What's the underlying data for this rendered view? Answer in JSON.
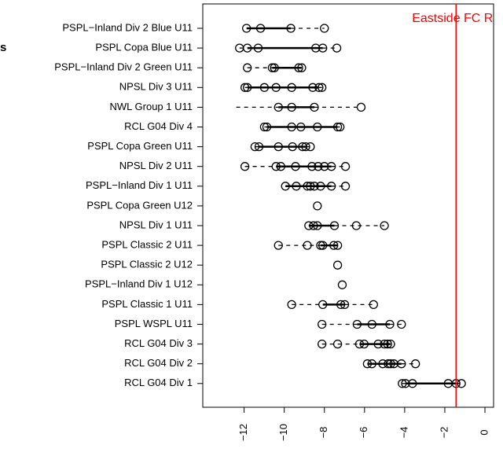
{
  "chart_data": {
    "type": "boxdot",
    "title": "s",
    "categories": [
      "PSPL−Inland Div 2 Blue U11",
      "PSPL Copa Blue U11",
      "PSPL−Inland Div 2 Green U11",
      "NPSL Div 3 U11",
      "NWL Group 1 U11",
      "RCL G04 Div 4",
      "PSPL Copa Green U11",
      "NPSL Div 2 U11",
      "PSPL−Inland Div 1 U11",
      "PSPL Copa Green U12",
      "NPSL Div 1 U11",
      "PSPL Classic 2 U11",
      "PSPL Classic 2 U12",
      "PSPL−Inland Div 1 U12",
      "PSPL Classic 1 U11",
      "PSPL WSPL U11",
      "RCL G04 Div 3",
      "RCL G04 Div 2",
      "RCL G04 Div 1"
    ],
    "points": [
      [
        -11.88,
        -11.18,
        -9.67,
        -8.0
      ],
      [
        -12.23,
        -11.84,
        -11.3,
        -8.43,
        -8.08,
        -7.38
      ],
      [
        -11.84,
        -10.6,
        -10.49,
        -9.28,
        -9.13
      ],
      [
        -11.96,
        -11.84,
        -10.99,
        -10.41,
        -9.63,
        -8.58,
        -8.27,
        -8.12
      ],
      [
        -10.29,
        -9.63,
        -8.5,
        -6.17
      ],
      [
        -10.99,
        -10.87,
        -9.63,
        -9.17,
        -8.35,
        -7.34,
        -7.22
      ],
      [
        -11.46,
        -11.26,
        -10.29,
        -9.59,
        -9.09,
        -8.93,
        -8.7
      ],
      [
        -11.96,
        -10.41,
        -10.17,
        -9.44,
        -8.62,
        -8.31,
        -8.0,
        -7.65,
        -6.95
      ],
      [
        -9.94,
        -9.4,
        -8.85,
        -8.7,
        -8.5,
        -8.19,
        -7.65,
        -6.95
      ],
      [
        -8.35
      ],
      [
        -8.78,
        -8.54,
        -8.35,
        -7.5,
        -6.41,
        -5.01
      ],
      [
        -10.29,
        -8.85,
        -8.19,
        -8.08,
        -7.53,
        -7.34
      ],
      [
        -7.34
      ],
      [
        -7.11
      ],
      [
        -9.63,
        -8.08,
        -7.18,
        -6.99,
        -5.55
      ],
      [
        -8.12,
        -6.37,
        -5.63,
        -4.74,
        -4.16
      ],
      [
        -8.12,
        -7.34,
        -6.25,
        -6.02,
        -5.32,
        -5.01,
        -4.85,
        -4.7
      ],
      [
        -5.86,
        -5.63,
        -5.09,
        -4.82,
        -4.7,
        -4.54,
        -4.16,
        -3.46
      ],
      [
        -4.12,
        -3.96,
        -3.61,
        -1.83,
        -1.44,
        -1.17
      ]
    ],
    "boxes": [
      [
        -11.88,
        -11.88,
        -9.67,
        -8.0
      ],
      [
        -12.23,
        -11.84,
        -8.08,
        -7.38
      ],
      [
        -11.84,
        -10.6,
        -9.13,
        -9.13
      ],
      [
        -11.96,
        -11.84,
        -8.27,
        -8.12
      ],
      [
        -12.39,
        -10.29,
        -8.5,
        -6.17
      ],
      [
        -10.99,
        -10.87,
        -7.34,
        -7.22
      ],
      [
        -11.46,
        -11.26,
        -8.93,
        -8.7
      ],
      [
        -11.96,
        -10.41,
        -7.65,
        -6.95
      ],
      [
        -9.94,
        -9.94,
        -7.65,
        -6.95
      ],
      [
        -8.35,
        -8.35,
        -8.35,
        -8.35
      ],
      [
        -8.78,
        -8.78,
        -7.5,
        -5.01
      ],
      [
        -10.29,
        -8.19,
        -7.34,
        -7.34
      ],
      [
        -7.34,
        -7.34,
        -7.34,
        -7.34
      ],
      [
        -7.11,
        -7.11,
        -7.11,
        -7.11
      ],
      [
        -9.63,
        -8.08,
        -6.99,
        -5.55
      ],
      [
        -8.12,
        -6.37,
        -4.74,
        -4.16
      ],
      [
        -8.12,
        -6.25,
        -4.7,
        -4.7
      ],
      [
        -5.86,
        -5.86,
        -4.16,
        -3.46
      ],
      [
        -4.12,
        -3.96,
        -1.44,
        -1.17
      ]
    ],
    "reference": {
      "value": -1.44,
      "label": "Eastside FC Re",
      "color": "#ff0000"
    },
    "xlim": [
      -14.06,
      0.43
    ],
    "xticks": [
      {
        "value": -12,
        "label": "−12"
      },
      {
        "value": -10,
        "label": "−10"
      },
      {
        "value": -8,
        "label": "−8"
      },
      {
        "value": -6,
        "label": "−6"
      },
      {
        "value": -4,
        "label": "−4"
      },
      {
        "value": -2,
        "label": "−2"
      },
      0
    ]
  }
}
